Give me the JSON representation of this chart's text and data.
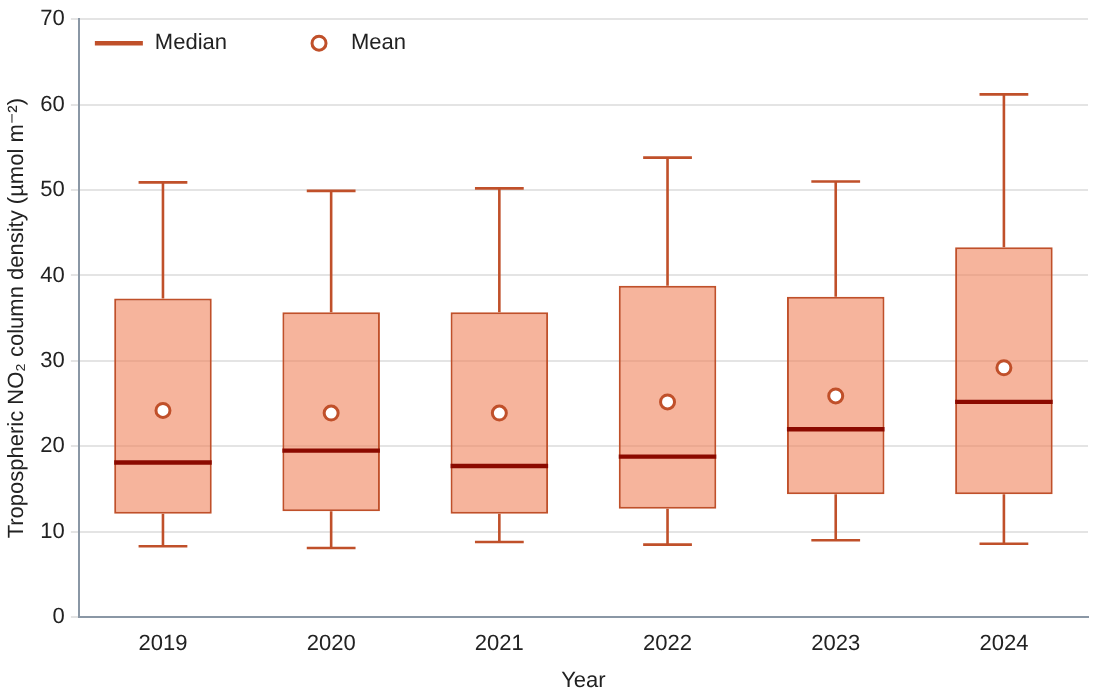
{
  "chart_data": {
    "type": "box",
    "xlabel": "Year",
    "ylabel": "Tropospheric NO₂ column density (µmol m⁻²)",
    "categories": [
      "2019",
      "2020",
      "2021",
      "2022",
      "2023",
      "2024"
    ],
    "series": [
      {
        "name": "Median",
        "type": "box",
        "color": "#c0502a",
        "boxes": [
          {
            "low": 8.3,
            "q1": 12.1,
            "median": 18.1,
            "q3": 37.3,
            "high": 50.9
          },
          {
            "low": 8.1,
            "q1": 12.4,
            "median": 19.5,
            "q3": 35.7,
            "high": 49.9
          },
          {
            "low": 8.8,
            "q1": 12.1,
            "median": 17.7,
            "q3": 35.7,
            "high": 50.2
          },
          {
            "low": 8.5,
            "q1": 12.7,
            "median": 18.8,
            "q3": 38.8,
            "high": 53.8
          },
          {
            "low": 9.0,
            "q1": 14.4,
            "median": 22.0,
            "q3": 37.5,
            "high": 51.0
          },
          {
            "low": 8.6,
            "q1": 14.4,
            "median": 25.2,
            "q3": 43.3,
            "high": 61.2
          }
        ]
      },
      {
        "name": "Mean",
        "type": "scatter",
        "color": "#c0502a",
        "marker": "circle",
        "values": [
          24.2,
          23.9,
          23.9,
          25.2,
          25.9,
          29.2
        ]
      }
    ],
    "ylim": [
      0,
      70
    ],
    "yticks": [
      0,
      10,
      20,
      30,
      40,
      50,
      60,
      70
    ],
    "grid": "y",
    "legend": "top left"
  }
}
